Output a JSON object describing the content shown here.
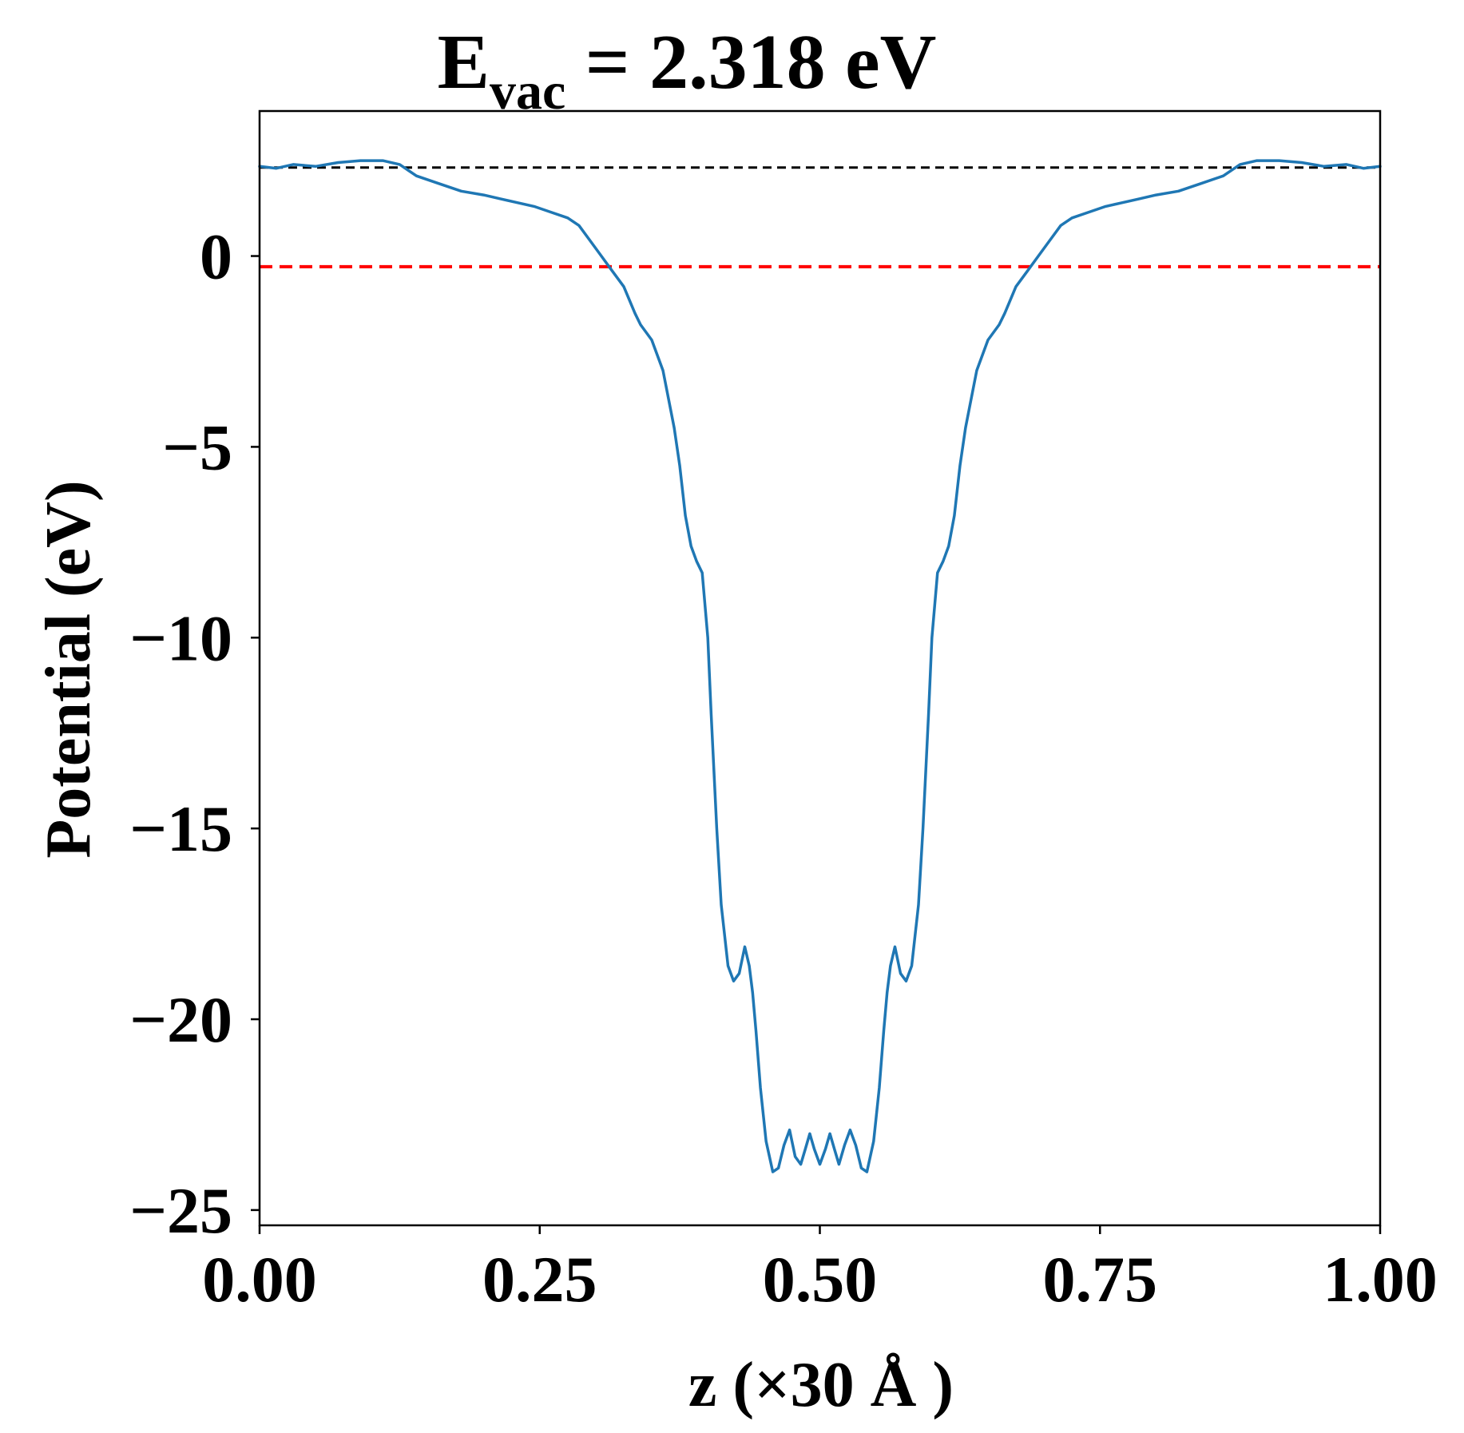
{
  "chart_data": {
    "type": "line",
    "title": {
      "main": "E",
      "subscript": "vac",
      "rest": " = 2.318 eV"
    },
    "xlabel": "z (×30 Å )",
    "ylabel": "Potential (eV)",
    "xlim": [
      0,
      1
    ],
    "ylim": [
      -25.4,
      3.8
    ],
    "xticks": [
      {
        "value": 0,
        "label": "0.00"
      },
      {
        "value": 0.25,
        "label": "0.25"
      },
      {
        "value": 0.5,
        "label": "0.50"
      },
      {
        "value": 0.75,
        "label": "0.75"
      },
      {
        "value": 1,
        "label": "1.00"
      }
    ],
    "yticks": [
      {
        "value": 0,
        "label": "0"
      },
      {
        "value": -5,
        "label": "−5"
      },
      {
        "value": -10,
        "label": "−10"
      },
      {
        "value": -15,
        "label": "−15"
      },
      {
        "value": -20,
        "label": "−20"
      },
      {
        "value": -25,
        "label": "−25"
      }
    ],
    "grid": false,
    "reference_lines": [
      {
        "axis": "y",
        "value": 2.318,
        "color": "#000000",
        "style": "dashed"
      },
      {
        "axis": "y",
        "value": -0.28,
        "color": "#ff0000",
        "style": "dashed"
      }
    ],
    "series": [
      {
        "color": "#1f77b4",
        "x": [
          0.0,
          0.015,
          0.03,
          0.05,
          0.07,
          0.09,
          0.11,
          0.125,
          0.14,
          0.16,
          0.18,
          0.2,
          0.215,
          0.23,
          0.245,
          0.26,
          0.275,
          0.285,
          0.295,
          0.305,
          0.315,
          0.325,
          0.335,
          0.34,
          0.35,
          0.36,
          0.37,
          0.375,
          0.38,
          0.385,
          0.39,
          0.395,
          0.4,
          0.403,
          0.408,
          0.412,
          0.418,
          0.423,
          0.428,
          0.433,
          0.437,
          0.44,
          0.443,
          0.447,
          0.452,
          0.458,
          0.463,
          0.468,
          0.473,
          0.478,
          0.483,
          0.487,
          0.491,
          0.495,
          0.5,
          0.505,
          0.509,
          0.513,
          0.517,
          0.522,
          0.527,
          0.532,
          0.537,
          0.542,
          0.548,
          0.553,
          0.557,
          0.56,
          0.563,
          0.567,
          0.572,
          0.577,
          0.582,
          0.588,
          0.592,
          0.597,
          0.6,
          0.605,
          0.61,
          0.615,
          0.62,
          0.625,
          0.63,
          0.64,
          0.65,
          0.66,
          0.665,
          0.675,
          0.685,
          0.695,
          0.705,
          0.715,
          0.725,
          0.74,
          0.755,
          0.77,
          0.785,
          0.8,
          0.82,
          0.84,
          0.86,
          0.875,
          0.89,
          0.91,
          0.93,
          0.95,
          0.97,
          0.985,
          1.0
        ],
        "y": [
          2.35,
          2.3,
          2.4,
          2.35,
          2.45,
          2.5,
          2.5,
          2.4,
          2.1,
          1.9,
          1.7,
          1.6,
          1.5,
          1.4,
          1.3,
          1.15,
          1.0,
          0.8,
          0.4,
          0.0,
          -0.4,
          -0.8,
          -1.5,
          -1.8,
          -2.2,
          -3.0,
          -4.5,
          -5.5,
          -6.8,
          -7.6,
          -8.0,
          -8.3,
          -10.0,
          -12.0,
          -15.0,
          -17.0,
          -18.6,
          -19.0,
          -18.8,
          -18.1,
          -18.6,
          -19.3,
          -20.3,
          -21.8,
          -23.2,
          -24.0,
          -23.9,
          -23.3,
          -22.9,
          -23.6,
          -23.8,
          -23.4,
          -23.0,
          -23.4,
          -23.8,
          -23.4,
          -23.0,
          -23.4,
          -23.8,
          -23.3,
          -22.9,
          -23.3,
          -23.9,
          -24.0,
          -23.2,
          -21.8,
          -20.3,
          -19.3,
          -18.6,
          -18.1,
          -18.8,
          -19.0,
          -18.6,
          -17.0,
          -15.0,
          -12.0,
          -10.0,
          -8.3,
          -8.0,
          -7.6,
          -6.8,
          -5.5,
          -4.5,
          -3.0,
          -2.2,
          -1.8,
          -1.5,
          -0.8,
          -0.4,
          0.0,
          0.4,
          0.8,
          1.0,
          1.15,
          1.3,
          1.4,
          1.5,
          1.6,
          1.7,
          1.9,
          2.1,
          2.4,
          2.5,
          2.5,
          2.45,
          2.35,
          2.4,
          2.3,
          2.35
        ]
      }
    ]
  }
}
